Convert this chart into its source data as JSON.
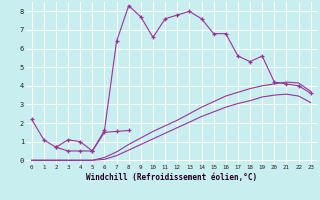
{
  "title": "",
  "xlabel": "Windchill (Refroidissement éolien,°C)",
  "bg_color": "#c8eef0",
  "line_color": "#993399",
  "grid_color": "#ffffff",
  "xlim": [
    -0.5,
    23.5
  ],
  "ylim": [
    -0.2,
    8.5
  ],
  "xticks": [
    0,
    1,
    2,
    3,
    4,
    5,
    6,
    7,
    8,
    9,
    10,
    11,
    12,
    13,
    14,
    15,
    16,
    17,
    18,
    19,
    20,
    21,
    22,
    23
  ],
  "yticks": [
    0,
    1,
    2,
    3,
    4,
    5,
    6,
    7,
    8
  ],
  "line1_x": [
    0,
    1,
    2,
    3,
    4,
    5,
    6,
    7,
    8,
    9,
    10,
    11,
    12,
    13,
    14,
    15,
    16,
    17,
    18,
    19,
    20,
    21,
    22,
    23
  ],
  "line1_y": [
    2.2,
    1.1,
    0.7,
    0.5,
    0.5,
    0.5,
    1.6,
    6.4,
    8.3,
    7.7,
    6.6,
    7.6,
    7.8,
    8.0,
    7.6,
    6.8,
    6.8,
    5.6,
    5.3,
    5.6,
    4.2,
    4.1,
    4.0,
    3.6
  ],
  "line2_x": [
    0,
    5,
    6,
    7,
    8,
    9,
    10,
    11,
    12,
    13,
    14,
    15,
    16,
    17,
    18,
    19,
    20,
    21,
    22,
    23
  ],
  "line2_y": [
    0.0,
    0.0,
    0.15,
    0.45,
    0.85,
    1.2,
    1.55,
    1.85,
    2.15,
    2.5,
    2.85,
    3.15,
    3.45,
    3.65,
    3.85,
    4.0,
    4.1,
    4.2,
    4.15,
    3.7
  ],
  "line3_x": [
    0,
    5,
    6,
    7,
    8,
    9,
    10,
    11,
    12,
    13,
    14,
    15,
    16,
    17,
    18,
    19,
    20,
    21,
    22,
    23
  ],
  "line3_y": [
    0.0,
    0.0,
    0.05,
    0.25,
    0.55,
    0.85,
    1.15,
    1.45,
    1.75,
    2.05,
    2.35,
    2.6,
    2.85,
    3.05,
    3.2,
    3.4,
    3.5,
    3.55,
    3.45,
    3.1
  ],
  "line4_x": [
    2,
    3,
    4,
    5,
    6,
    7,
    8
  ],
  "line4_y": [
    0.7,
    1.1,
    1.0,
    0.5,
    1.5,
    1.55,
    1.6
  ]
}
